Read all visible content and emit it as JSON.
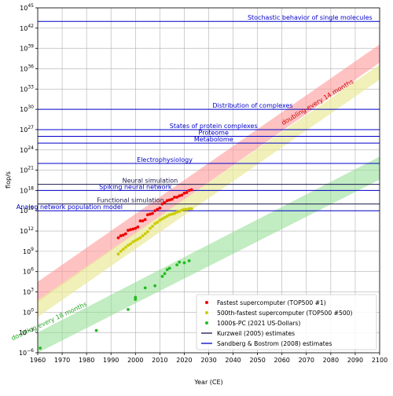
{
  "chart_data": {
    "type": "scatter",
    "xlabel": "Year (CE)",
    "ylabel": "flop/s",
    "xlim": [
      1960,
      2100
    ],
    "ylim_log10": [
      -6,
      45
    ],
    "y_scale": "log",
    "grid": true,
    "x_ticks": [
      1960,
      1970,
      1980,
      1990,
      2000,
      2010,
      2020,
      2030,
      2040,
      2050,
      2060,
      2070,
      2080,
      2090,
      2100
    ],
    "y_ticks": [
      {
        "exp": -6,
        "base": "10",
        "sup": "−6"
      },
      {
        "exp": -3,
        "base": "10",
        "sup": "−3"
      },
      {
        "exp": 0,
        "base": "10",
        "sup": "0"
      },
      {
        "exp": 3,
        "base": "10",
        "sup": "3"
      },
      {
        "exp": 6,
        "base": "10",
        "sup": "6"
      },
      {
        "exp": 9,
        "base": "10",
        "sup": "9"
      },
      {
        "exp": 12,
        "base": "10",
        "sup": "12"
      },
      {
        "exp": 15,
        "base": "10",
        "sup": "15"
      },
      {
        "exp": 18,
        "base": "10",
        "sup": "18"
      },
      {
        "exp": 21,
        "base": "10",
        "sup": "21"
      },
      {
        "exp": 24,
        "base": "10",
        "sup": "24"
      },
      {
        "exp": 27,
        "base": "10",
        "sup": "27"
      },
      {
        "exp": 30,
        "base": "10",
        "sup": "30"
      },
      {
        "exp": 33,
        "base": "10",
        "sup": "33"
      },
      {
        "exp": 36,
        "base": "10",
        "sup": "36"
      },
      {
        "exp": 39,
        "base": "10",
        "sup": "39"
      },
      {
        "exp": 42,
        "base": "10",
        "sup": "42"
      },
      {
        "exp": 45,
        "base": "10",
        "sup": "45"
      }
    ],
    "legend_position": "lower-right",
    "bands": [
      {
        "color": "#ff9a9a",
        "opacity": 0.6,
        "lower": [
          [
            1960,
            1.5
          ],
          [
            2100,
            36.9
          ]
        ],
        "upper": [
          [
            1960,
            4.5
          ],
          [
            2100,
            39.6
          ]
        ]
      },
      {
        "color": "#eaea9a",
        "opacity": 0.7,
        "lower": [
          [
            1960,
            -0.7
          ],
          [
            2100,
            34.4
          ]
        ],
        "upper": [
          [
            1960,
            1.8
          ],
          [
            2100,
            36.6
          ]
        ]
      },
      {
        "color": "#8fdc8f",
        "opacity": 0.55,
        "lower": [
          [
            1960,
            -6.0
          ],
          [
            2100,
            19.6
          ]
        ],
        "upper": [
          [
            1960,
            -3.0
          ],
          [
            2100,
            23.0
          ]
        ]
      }
    ],
    "band_labels": [
      {
        "text": "doubling every 14 months",
        "color": "#cc0000",
        "x": 2075,
        "y": 30.8,
        "angle": -31
      },
      {
        "text": "doubling every 18 months",
        "color": "#22aa22",
        "x": 1965,
        "y": -1.6,
        "angle": -25
      }
    ],
    "estimates": [
      {
        "label": "Stochastic behavior of single molecules",
        "y": 43,
        "color": "#0000cc",
        "label_x": 2097,
        "anchor": "end"
      },
      {
        "label": "Distribution of complexes",
        "y": 30,
        "color": "#0000cc",
        "label_x": 2048,
        "anchor": "middle"
      },
      {
        "label": "States of protein complexes",
        "y": 27,
        "color": "#0000cc",
        "label_x": 2032,
        "anchor": "middle"
      },
      {
        "label": "Proteome",
        "y": 26,
        "color": "#0000cc",
        "label_x": 2032,
        "anchor": "middle"
      },
      {
        "label": "Metabolome",
        "y": 25,
        "color": "#0000cc",
        "label_x": 2032,
        "anchor": "middle"
      },
      {
        "label": "Electrophysiology",
        "y": 22,
        "color": "#0000cc",
        "label_x": 2012,
        "anchor": "middle"
      },
      {
        "label": "Neural simulation",
        "y": 18.9,
        "color": "#1a1a4d",
        "label_x": 2006,
        "anchor": "middle"
      },
      {
        "label": "Spiking neural network",
        "y": 18,
        "color": "#0000cc",
        "label_x": 2000,
        "anchor": "middle"
      },
      {
        "label": "Functional simulation",
        "y": 16,
        "color": "#1a1a4d",
        "label_x": 1998,
        "anchor": "middle"
      },
      {
        "label": "Analog network population model",
        "y": 15,
        "color": "#0000cc",
        "label_x": 1973,
        "anchor": "middle"
      }
    ],
    "series": [
      {
        "name": "Fastest supercomputer (TOP500 #1)",
        "color": "#ee0000",
        "points": [
          [
            1993,
            11.0
          ],
          [
            1994,
            11.3
          ],
          [
            1995,
            11.4
          ],
          [
            1996,
            11.6
          ],
          [
            1997,
            12.1
          ],
          [
            1998,
            12.2
          ],
          [
            1999,
            12.3
          ],
          [
            2000,
            12.4
          ],
          [
            2001,
            12.6
          ],
          [
            2002,
            13.5
          ],
          [
            2003,
            13.5
          ],
          [
            2004,
            13.7
          ],
          [
            2005,
            14.4
          ],
          [
            2006,
            14.5
          ],
          [
            2007,
            14.6
          ],
          [
            2008,
            15.0
          ],
          [
            2009,
            15.2
          ],
          [
            2010,
            15.4
          ],
          [
            2011,
            16.0
          ],
          [
            2012,
            16.2
          ],
          [
            2013,
            16.5
          ],
          [
            2014,
            16.6
          ],
          [
            2015,
            16.7
          ],
          [
            2016,
            17.0
          ],
          [
            2017,
            17.0
          ],
          [
            2018,
            17.2
          ],
          [
            2019,
            17.3
          ],
          [
            2020,
            17.6
          ],
          [
            2021,
            17.7
          ],
          [
            2022,
            18.0
          ],
          [
            2023,
            18.1
          ]
        ]
      },
      {
        "name": "500th-fastest supercomputer (TOP500 #500)",
        "color": "#cccc00",
        "points": [
          [
            1993,
            8.6
          ],
          [
            1994,
            9.0
          ],
          [
            1995,
            9.3
          ],
          [
            1996,
            9.6
          ],
          [
            1997,
            9.9
          ],
          [
            1998,
            10.1
          ],
          [
            1999,
            10.4
          ],
          [
            2000,
            10.6
          ],
          [
            2001,
            10.8
          ],
          [
            2002,
            11.0
          ],
          [
            2003,
            11.3
          ],
          [
            2004,
            11.6
          ],
          [
            2005,
            11.9
          ],
          [
            2006,
            12.4
          ],
          [
            2007,
            12.7
          ],
          [
            2008,
            13.1
          ],
          [
            2009,
            13.3
          ],
          [
            2010,
            13.6
          ],
          [
            2011,
            13.8
          ],
          [
            2012,
            14.0
          ],
          [
            2013,
            14.2
          ],
          [
            2014,
            14.4
          ],
          [
            2015,
            14.5
          ],
          [
            2016,
            14.6
          ],
          [
            2017,
            14.8
          ],
          [
            2018,
            14.9
          ],
          [
            2019,
            15.1
          ],
          [
            2020,
            15.2
          ],
          [
            2021,
            15.2
          ],
          [
            2022,
            15.3
          ],
          [
            2023,
            15.3
          ]
        ]
      },
      {
        "name": "1000$-PC (2021 US-Dollars)",
        "color": "#22bb22",
        "points": [
          [
            1961,
            -5.3
          ],
          [
            1984,
            -2.7
          ],
          [
            1997,
            0.4
          ],
          [
            2000,
            1.9
          ],
          [
            2000,
            2.2
          ],
          [
            2004,
            3.6
          ],
          [
            2008,
            3.9
          ],
          [
            2011,
            5.3
          ],
          [
            2012,
            5.7
          ],
          [
            2013,
            6.3
          ],
          [
            2014,
            6.5
          ],
          [
            2017,
            7.0
          ],
          [
            2018,
            7.4
          ],
          [
            2020,
            7.3
          ],
          [
            2022,
            7.6
          ]
        ]
      },
      {
        "name": "Kurzweil (2005) estimates",
        "color": "#1a1a4d",
        "kind": "line"
      },
      {
        "name": "Sandberg & Bostrom (2008) estimates",
        "color": "#0000cc",
        "kind": "line"
      }
    ]
  }
}
